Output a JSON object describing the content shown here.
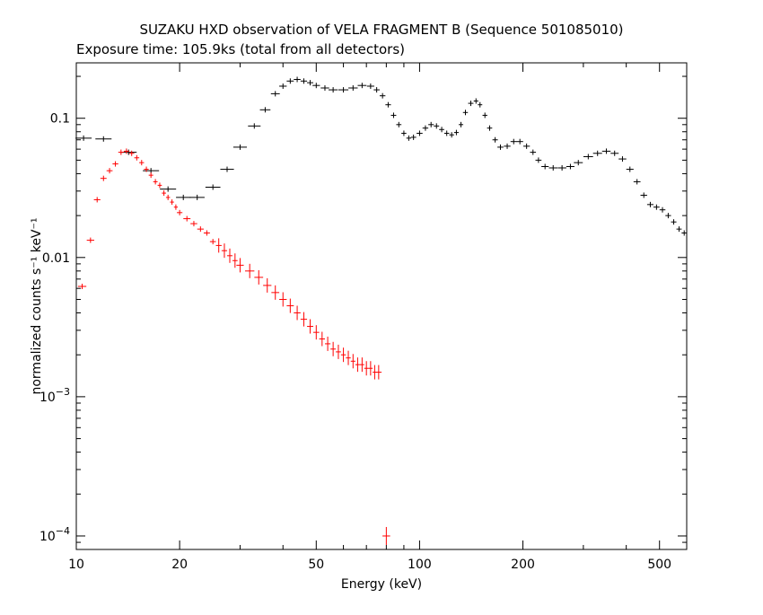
{
  "chart_data": {
    "type": "scatter",
    "title": "SUZAKU HXD observation of VELA FRAGMENT B (Sequence 501085010)",
    "subtitle": "Exposure time: 105.9ks (total from all detectors)",
    "xlabel": "Energy (keV)",
    "ylabel": "normalized counts s⁻¹ keV⁻¹",
    "xscale": "log",
    "yscale": "log",
    "xlim": [
      10,
      600
    ],
    "ylim": [
      8e-05,
      0.25
    ],
    "x_ticks": [
      {
        "value": 10,
        "label": "10"
      },
      {
        "value": 20,
        "label": "20"
      },
      {
        "value": 50,
        "label": "50"
      },
      {
        "value": 100,
        "label": "100"
      },
      {
        "value": 200,
        "label": "200"
      },
      {
        "value": 500,
        "label": "500"
      }
    ],
    "y_ticks": [
      {
        "value": 0.1,
        "label": "0.1"
      },
      {
        "value": 0.01,
        "label": "0.01"
      },
      {
        "value": 0.001,
        "label": "10",
        "exponent": "−3"
      },
      {
        "value": 0.0001,
        "label": "10",
        "exponent": "−4"
      }
    ],
    "grid": false,
    "legend": "none",
    "series": [
      {
        "color": "#000000",
        "points": [
          [
            10.5,
            0.072
          ],
          [
            12.0,
            0.071
          ],
          [
            14.2,
            0.057
          ],
          [
            16.5,
            0.042
          ],
          [
            18.5,
            0.031
          ],
          [
            20.5,
            0.027
          ],
          [
            22.5,
            0.027
          ],
          [
            25.0,
            0.032
          ],
          [
            27.5,
            0.043
          ],
          [
            30.0,
            0.062
          ],
          [
            33.0,
            0.088
          ],
          [
            35.5,
            0.115
          ],
          [
            38.0,
            0.15
          ],
          [
            40.0,
            0.17
          ],
          [
            42.0,
            0.185
          ],
          [
            44.0,
            0.19
          ],
          [
            46.0,
            0.185
          ],
          [
            48.0,
            0.18
          ],
          [
            50.0,
            0.172
          ],
          [
            53.0,
            0.165
          ],
          [
            56.0,
            0.16
          ],
          [
            60.0,
            0.16
          ],
          [
            64.0,
            0.165
          ],
          [
            68.0,
            0.172
          ],
          [
            72.0,
            0.17
          ],
          [
            75.0,
            0.16
          ],
          [
            78.0,
            0.145
          ],
          [
            81.0,
            0.125
          ],
          [
            84.0,
            0.105
          ],
          [
            87.0,
            0.09
          ],
          [
            90.0,
            0.078
          ],
          [
            93.0,
            0.072
          ],
          [
            96.0,
            0.073
          ],
          [
            100.0,
            0.078
          ],
          [
            104.0,
            0.085
          ],
          [
            108.0,
            0.09
          ],
          [
            112.0,
            0.088
          ],
          [
            116.0,
            0.083
          ],
          [
            120.0,
            0.078
          ],
          [
            124.0,
            0.076
          ],
          [
            128.0,
            0.079
          ],
          [
            132.0,
            0.09
          ],
          [
            136.0,
            0.11
          ],
          [
            141.0,
            0.128
          ],
          [
            146.0,
            0.133
          ],
          [
            150.0,
            0.125
          ],
          [
            155.0,
            0.105
          ],
          [
            160.0,
            0.085
          ],
          [
            166.0,
            0.07
          ],
          [
            172.0,
            0.062
          ],
          [
            180.0,
            0.063
          ],
          [
            188.0,
            0.068
          ],
          [
            196.0,
            0.068
          ],
          [
            205.0,
            0.063
          ],
          [
            214.0,
            0.057
          ],
          [
            222.0,
            0.05
          ],
          [
            232.0,
            0.045
          ],
          [
            245.0,
            0.044
          ],
          [
            260.0,
            0.044
          ],
          [
            275.0,
            0.045
          ],
          [
            290.0,
            0.048
          ],
          [
            310.0,
            0.053
          ],
          [
            330.0,
            0.056
          ],
          [
            350.0,
            0.058
          ],
          [
            370.0,
            0.056
          ],
          [
            390.0,
            0.051
          ],
          [
            410.0,
            0.043
          ],
          [
            430.0,
            0.035
          ],
          [
            450.0,
            0.028
          ],
          [
            470.0,
            0.024
          ],
          [
            490.0,
            0.023
          ],
          [
            510.0,
            0.022
          ],
          [
            530.0,
            0.02
          ],
          [
            550.0,
            0.018
          ],
          [
            570.0,
            0.016
          ],
          [
            590.0,
            0.015
          ]
        ]
      },
      {
        "color": "#ff0000",
        "points": [
          [
            10.4,
            0.0062
          ],
          [
            11.0,
            0.0133
          ],
          [
            11.5,
            0.026
          ],
          [
            12.0,
            0.037
          ],
          [
            12.5,
            0.042
          ],
          [
            13.0,
            0.047
          ],
          [
            13.5,
            0.057
          ],
          [
            14.0,
            0.058
          ],
          [
            14.5,
            0.056
          ],
          [
            15.0,
            0.052
          ],
          [
            15.5,
            0.048
          ],
          [
            16.0,
            0.043
          ],
          [
            16.5,
            0.039
          ],
          [
            17.0,
            0.035
          ],
          [
            17.5,
            0.033
          ],
          [
            18.0,
            0.029
          ],
          [
            18.5,
            0.027
          ],
          [
            19.0,
            0.025
          ],
          [
            19.5,
            0.023
          ],
          [
            20.0,
            0.021
          ],
          [
            21.0,
            0.019
          ],
          [
            22.0,
            0.0175
          ],
          [
            23.0,
            0.016
          ],
          [
            24.0,
            0.015
          ],
          [
            25.0,
            0.013
          ],
          [
            26.0,
            0.0122
          ],
          [
            27.0,
            0.0112
          ],
          [
            28.0,
            0.0103
          ],
          [
            29.0,
            0.0095
          ],
          [
            30.0,
            0.0088
          ],
          [
            32.0,
            0.008
          ],
          [
            34.0,
            0.0072
          ],
          [
            36.0,
            0.0063
          ],
          [
            38.0,
            0.0056
          ],
          [
            40.0,
            0.005
          ],
          [
            42.0,
            0.0045
          ],
          [
            44.0,
            0.004
          ],
          [
            46.0,
            0.0036
          ],
          [
            48.0,
            0.0032
          ],
          [
            50.0,
            0.0029
          ],
          [
            52.0,
            0.0026
          ],
          [
            54.0,
            0.0024
          ],
          [
            56.0,
            0.0022
          ],
          [
            58.0,
            0.0021
          ],
          [
            60.0,
            0.002
          ],
          [
            62.0,
            0.0019
          ],
          [
            64.0,
            0.0018
          ],
          [
            66.0,
            0.0017
          ],
          [
            68.0,
            0.0017
          ],
          [
            70.0,
            0.0016
          ],
          [
            72.0,
            0.0016
          ],
          [
            74.0,
            0.0015
          ],
          [
            76.0,
            0.0015
          ],
          [
            80.0,
            0.0001
          ]
        ]
      }
    ]
  }
}
